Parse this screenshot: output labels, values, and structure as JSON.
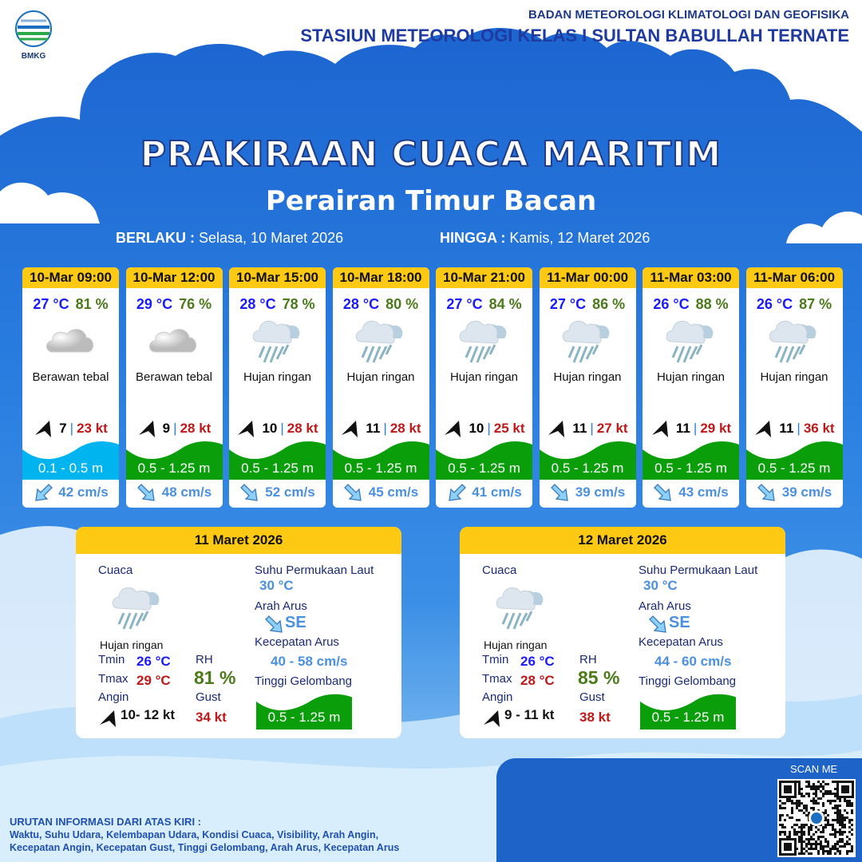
{
  "header": {
    "logo_text": "BMKG",
    "org_line1": "BADAN METEOROLOGI KLIMATOLOGI DAN GEOFISIKA",
    "org_line2": "STASIUN METEOROLOGI KELAS I SULTAN BABULLAH TERNATE",
    "title": "PRAKIRAAN CUACA MARITIM",
    "subtitle": "Perairan Timur Bacan"
  },
  "validity": {
    "from_label": "BERLAKU :",
    "from_value": "Selasa, 10 Maret 2026",
    "to_label": "HINGGA :",
    "to_value": "Kamis, 12 Maret 2026"
  },
  "colors": {
    "header_yellow": "#fdc913",
    "wave_low": "#00b4f0",
    "wave_moderate": "#0a9e0a",
    "temp": "#1a1aff",
    "humidity": "#4a7a1a",
    "gust": "#c01818",
    "current": "#4a90e0"
  },
  "forecasts": [
    {
      "time": "10-Mar 09:00",
      "temp": "27 °C",
      "rh": "81 %",
      "icon": "cloud-icon",
      "weather": "Berawan tebal",
      "wind": "7",
      "gust": "23 kt",
      "wave": "0.1 - 0.5 m",
      "wave_level": "low",
      "current_dir": "SW",
      "current": "42 cm/s"
    },
    {
      "time": "10-Mar 12:00",
      "temp": "29 °C",
      "rh": "76 %",
      "icon": "cloud-icon",
      "weather": "Berawan tebal",
      "wind": "9",
      "gust": "28 kt",
      "wave": "0.5 - 1.25 m",
      "wave_level": "moderate",
      "current_dir": "SE",
      "current": "48 cm/s"
    },
    {
      "time": "10-Mar 15:00",
      "temp": "28 °C",
      "rh": "78 %",
      "icon": "rain-icon",
      "weather": "Hujan ringan",
      "wind": "10",
      "gust": "28 kt",
      "wave": "0.5 - 1.25 m",
      "wave_level": "moderate",
      "current_dir": "SE",
      "current": "52 cm/s"
    },
    {
      "time": "10-Mar 18:00",
      "temp": "28 °C",
      "rh": "80 %",
      "icon": "rain-icon",
      "weather": "Hujan ringan",
      "wind": "11",
      "gust": "28 kt",
      "wave": "0.5 - 1.25 m",
      "wave_level": "moderate",
      "current_dir": "SE",
      "current": "45 cm/s"
    },
    {
      "time": "10-Mar 21:00",
      "temp": "27 °C",
      "rh": "84 %",
      "icon": "rain-icon",
      "weather": "Hujan ringan",
      "wind": "10",
      "gust": "25 kt",
      "wave": "0.5 - 1.25 m",
      "wave_level": "moderate",
      "current_dir": "SW",
      "current": "41 cm/s"
    },
    {
      "time": "11-Mar 00:00",
      "temp": "27 °C",
      "rh": "86 %",
      "icon": "rain-icon",
      "weather": "Hujan ringan",
      "wind": "11",
      "gust": "27 kt",
      "wave": "0.5 - 1.25 m",
      "wave_level": "moderate",
      "current_dir": "SE",
      "current": "39 cm/s"
    },
    {
      "time": "11-Mar 03:00",
      "temp": "26 °C",
      "rh": "88 %",
      "icon": "rain-icon",
      "weather": "Hujan ringan",
      "wind": "11",
      "gust": "29 kt",
      "wave": "0.5 - 1.25 m",
      "wave_level": "moderate",
      "current_dir": "SE",
      "current": "43 cm/s"
    },
    {
      "time": "11-Mar 06:00",
      "temp": "26 °C",
      "rh": "87 %",
      "icon": "rain-icon",
      "weather": "Hujan ringan",
      "wind": "11",
      "gust": "36 kt",
      "wave": "0.5 - 1.25 m",
      "wave_level": "moderate",
      "current_dir": "SE",
      "current": "39 cm/s"
    }
  ],
  "labels": {
    "cuaca": "Cuaca",
    "sst": "Suhu Permukaan Laut",
    "arah": "Arah Arus",
    "kecepatan": "Kecepatan Arus",
    "tinggi": "Tinggi Gelombang",
    "tmin": "Tmin",
    "tmax": "Tmax",
    "rh": "RH",
    "angin": "Angin",
    "gust": "Gust"
  },
  "daily": [
    {
      "date": "11 Maret 2026",
      "weather": "Hujan ringan",
      "tmin": "26 °C",
      "tmax": "29 °C",
      "rh": "81 %",
      "wind": "10- 12 kt",
      "gust": "34 kt",
      "sst": "30 °C",
      "current_dir": "SE",
      "current": "40 - 58 cm/s",
      "wave": "0.5 - 1.25 m"
    },
    {
      "date": "12 Maret 2026",
      "weather": "Hujan ringan",
      "tmin": "26 °C",
      "tmax": "28 °C",
      "rh": "85 %",
      "wind": "9  - 11 kt",
      "gust": "38 kt",
      "sst": "30 °C",
      "current_dir": "SE",
      "current": "44 - 60 cm/s",
      "wave": "0.5 - 1.25 m"
    }
  ],
  "footer": {
    "line1": "URUTAN INFORMASI DARI ATAS KIRI :",
    "line2": "Waktu, Suhu Udara, Kelembapan Udara, Kondisi Cuaca, Visibility, Arah Angin,",
    "line3": "Kecepatan Angin, Kecepatan Gust, Tinggi Gelombang, Arah Arus, Kecepatan Arus",
    "scan": "SCAN ME"
  }
}
